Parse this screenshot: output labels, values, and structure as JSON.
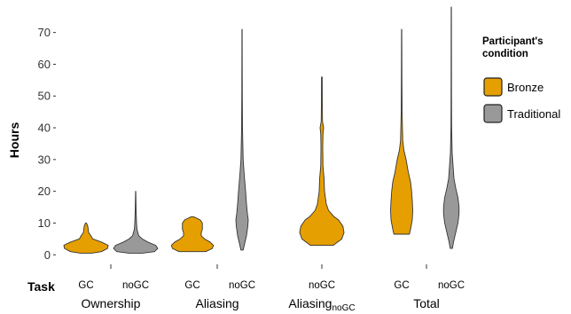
{
  "chart_data": {
    "type": "violin",
    "ylabel": "Hours",
    "xlabel": "Task",
    "ylim": [
      -3,
      78
    ],
    "yticks": [
      0,
      10,
      20,
      30,
      40,
      50,
      60,
      70
    ],
    "legend": {
      "title": [
        "Participant's",
        "condition"
      ],
      "position": "right",
      "entries": [
        {
          "name": "Bronze",
          "color": "#E69F00"
        },
        {
          "name": "Traditional",
          "color": "#999999"
        }
      ]
    },
    "groups": [
      {
        "label": "Ownership",
        "sub": "",
        "categories": [
          "GC",
          "noGC"
        ]
      },
      {
        "label": "Aliasing",
        "sub": "",
        "categories": [
          "GC",
          "noGC"
        ]
      },
      {
        "label": "Aliasing",
        "sub": "noGC",
        "categories": [
          "noGC"
        ]
      },
      {
        "label": "Total",
        "sub": "",
        "categories": [
          "GC",
          "noGC"
        ]
      }
    ],
    "series": [
      {
        "name": "Bronze",
        "group": 0,
        "category": "GC",
        "min": 0.5,
        "max": 10,
        "profile": [
          [
            0.5,
            0.25
          ],
          [
            1,
            0.7
          ],
          [
            2,
            0.97
          ],
          [
            3,
            1.0
          ],
          [
            4,
            0.7
          ],
          [
            5,
            0.3
          ],
          [
            6,
            0.22
          ],
          [
            7,
            0.12
          ],
          [
            8,
            0.1
          ],
          [
            9,
            0.08
          ],
          [
            10,
            0.02
          ]
        ]
      },
      {
        "name": "Traditional",
        "group": 0,
        "category": "noGC",
        "min": 0.5,
        "max": 20,
        "profile": [
          [
            0.5,
            0.3
          ],
          [
            1,
            0.85
          ],
          [
            2,
            1.0
          ],
          [
            3,
            0.9
          ],
          [
            4,
            0.55
          ],
          [
            5,
            0.3
          ],
          [
            6,
            0.14
          ],
          [
            8,
            0.06
          ],
          [
            10,
            0.04
          ],
          [
            14,
            0.02
          ],
          [
            20,
            0.005
          ]
        ]
      },
      {
        "name": "Bronze",
        "group": 1,
        "category": "GC",
        "min": 1,
        "max": 12,
        "profile": [
          [
            1,
            0.6
          ],
          [
            2,
            0.9
          ],
          [
            3,
            0.95
          ],
          [
            4,
            0.8
          ],
          [
            5,
            0.55
          ],
          [
            6,
            0.4
          ],
          [
            7,
            0.4
          ],
          [
            8,
            0.45
          ],
          [
            9,
            0.45
          ],
          [
            10,
            0.45
          ],
          [
            11,
            0.35
          ],
          [
            12,
            0.05
          ]
        ]
      },
      {
        "name": "Traditional",
        "group": 1,
        "category": "noGC",
        "min": 1.5,
        "max": 71,
        "profile": [
          [
            1.5,
            0.05
          ],
          [
            3,
            0.1
          ],
          [
            6,
            0.2
          ],
          [
            9,
            0.26
          ],
          [
            11,
            0.28
          ],
          [
            13,
            0.24
          ],
          [
            16,
            0.2
          ],
          [
            20,
            0.16
          ],
          [
            25,
            0.1
          ],
          [
            30,
            0.05
          ],
          [
            40,
            0.02
          ],
          [
            50,
            0.012
          ],
          [
            60,
            0.008
          ],
          [
            71,
            0.005
          ]
        ]
      },
      {
        "name": "Bronze",
        "group": 2,
        "category": "noGC",
        "min": 3,
        "max": 56,
        "profile": [
          [
            3,
            0.52
          ],
          [
            5,
            0.9
          ],
          [
            7,
            1.0
          ],
          [
            9,
            0.95
          ],
          [
            11,
            0.75
          ],
          [
            12,
            0.55
          ],
          [
            14,
            0.3
          ],
          [
            16,
            0.2
          ],
          [
            20,
            0.12
          ],
          [
            24,
            0.1
          ],
          [
            28,
            0.05
          ],
          [
            34,
            0.04
          ],
          [
            38,
            0.05
          ],
          [
            40,
            0.08
          ],
          [
            42,
            0.03
          ],
          [
            48,
            0.02
          ],
          [
            56,
            0.015
          ]
        ]
      },
      {
        "name": "Bronze",
        "group": 3,
        "category": "GC",
        "min": 6.5,
        "max": 71,
        "profile": [
          [
            6.5,
            0.35
          ],
          [
            8,
            0.4
          ],
          [
            11,
            0.48
          ],
          [
            14,
            0.5
          ],
          [
            17,
            0.48
          ],
          [
            20,
            0.45
          ],
          [
            23,
            0.4
          ],
          [
            26,
            0.3
          ],
          [
            30,
            0.2
          ],
          [
            33,
            0.1
          ],
          [
            36,
            0.05
          ],
          [
            45,
            0.02
          ],
          [
            55,
            0.012
          ],
          [
            65,
            0.008
          ],
          [
            71,
            0.005
          ]
        ]
      },
      {
        "name": "Traditional",
        "group": 3,
        "category": "noGC",
        "min": 2,
        "max": 78,
        "profile": [
          [
            2,
            0.05
          ],
          [
            4,
            0.1
          ],
          [
            7,
            0.2
          ],
          [
            10,
            0.3
          ],
          [
            13,
            0.35
          ],
          [
            15,
            0.35
          ],
          [
            18,
            0.3
          ],
          [
            21,
            0.2
          ],
          [
            24,
            0.12
          ],
          [
            28,
            0.08
          ],
          [
            32,
            0.04
          ],
          [
            40,
            0.015
          ],
          [
            50,
            0.01
          ],
          [
            60,
            0.008
          ],
          [
            78,
            0.005
          ]
        ]
      }
    ]
  }
}
